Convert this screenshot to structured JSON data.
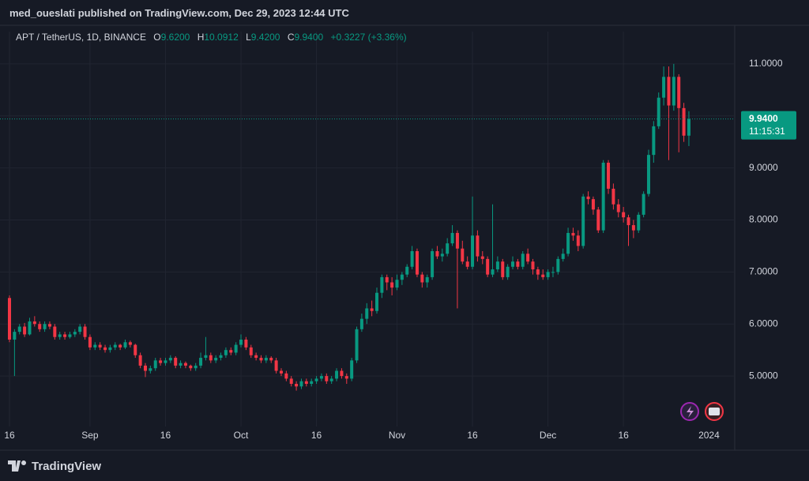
{
  "header": "med_oueslati published on TradingView.com, Dec 29, 2023 12:44 UTC",
  "footer": "TradingView",
  "chart_data": {
    "type": "candlestick",
    "legend": {
      "symbol": "APT / TetherUS, 1D, BINANCE",
      "open_key": "O",
      "open": "9.6200",
      "high_key": "H",
      "high": "10.0912",
      "low_key": "L",
      "low": "9.4200",
      "close_key": "C",
      "close": "9.9400",
      "change": "+0.3227 (+3.36%)"
    },
    "up_color": "#089981",
    "down_color": "#f23645",
    "ylim": [
      4.03,
      11.62
    ],
    "yticks": [
      {
        "value": 11,
        "label": "11.0000"
      },
      {
        "value": 10,
        "label": "10.0000"
      },
      {
        "value": 9,
        "label": "9.0000"
      },
      {
        "value": 8,
        "label": "8.0000"
      },
      {
        "value": 7,
        "label": "7.0000"
      },
      {
        "value": 6,
        "label": "6.0000"
      },
      {
        "value": 5,
        "label": "5.0000"
      }
    ],
    "grid": true,
    "last_price": {
      "value": 9.94,
      "label": "9.9400"
    },
    "countdown": "11:15:31",
    "future_label": "2024",
    "categories": [
      "16",
      null,
      null,
      null,
      null,
      null,
      null,
      null,
      null,
      null,
      null,
      null,
      null,
      null,
      null,
      null,
      "Sep",
      null,
      null,
      null,
      null,
      null,
      null,
      null,
      null,
      null,
      null,
      null,
      null,
      null,
      null,
      "16",
      null,
      null,
      null,
      null,
      null,
      null,
      null,
      null,
      null,
      null,
      null,
      null,
      null,
      null,
      "Oct",
      null,
      null,
      null,
      null,
      null,
      null,
      null,
      null,
      null,
      null,
      null,
      null,
      null,
      null,
      "16",
      null,
      null,
      null,
      null,
      null,
      null,
      null,
      null,
      null,
      null,
      null,
      null,
      null,
      null,
      null,
      "Nov",
      null,
      null,
      null,
      null,
      null,
      null,
      null,
      null,
      null,
      null,
      null,
      null,
      null,
      null,
      "16",
      null,
      null,
      null,
      null,
      null,
      null,
      null,
      null,
      null,
      null,
      null,
      null,
      null,
      null,
      "Dec",
      null,
      null,
      null,
      null,
      null,
      null,
      null,
      null,
      null,
      null,
      null,
      null,
      null,
      null,
      "16",
      null,
      null,
      null,
      null,
      null,
      null,
      null,
      null,
      null,
      null,
      null,
      null,
      null
    ],
    "ohlc": [
      [
        6.5,
        6.55,
        5.65,
        5.7
      ],
      [
        5.7,
        5.9,
        5.0,
        5.85
      ],
      [
        5.85,
        6.0,
        5.8,
        5.95
      ],
      [
        5.95,
        6.02,
        5.75,
        5.8
      ],
      [
        5.8,
        6.12,
        5.78,
        6.05
      ],
      [
        6.05,
        6.15,
        5.95,
        6.0
      ],
      [
        6.0,
        6.05,
        5.85,
        5.9
      ],
      [
        5.9,
        6.05,
        5.85,
        6.0
      ],
      [
        6.0,
        6.05,
        5.9,
        5.95
      ],
      [
        5.95,
        6.0,
        5.7,
        5.75
      ],
      [
        5.75,
        5.85,
        5.7,
        5.8
      ],
      [
        5.8,
        5.85,
        5.7,
        5.75
      ],
      [
        5.75,
        5.85,
        5.72,
        5.8
      ],
      [
        5.8,
        5.9,
        5.75,
        5.85
      ],
      [
        5.85,
        6.0,
        5.8,
        5.95
      ],
      [
        5.95,
        6.0,
        5.7,
        5.75
      ],
      [
        5.75,
        5.8,
        5.5,
        5.55
      ],
      [
        5.55,
        5.65,
        5.5,
        5.6
      ],
      [
        5.6,
        5.65,
        5.5,
        5.55
      ],
      [
        5.55,
        5.6,
        5.45,
        5.5
      ],
      [
        5.5,
        5.6,
        5.45,
        5.55
      ],
      [
        5.55,
        5.65,
        5.5,
        5.6
      ],
      [
        5.6,
        5.62,
        5.5,
        5.55
      ],
      [
        5.55,
        5.7,
        5.52,
        5.65
      ],
      [
        5.65,
        5.68,
        5.55,
        5.6
      ],
      [
        5.6,
        5.62,
        5.35,
        5.4
      ],
      [
        5.4,
        5.45,
        5.15,
        5.2
      ],
      [
        5.2,
        5.25,
        4.98,
        5.1
      ],
      [
        5.1,
        5.2,
        5.05,
        5.15
      ],
      [
        5.15,
        5.35,
        5.1,
        5.3
      ],
      [
        5.3,
        5.35,
        5.2,
        5.25
      ],
      [
        5.25,
        5.35,
        5.2,
        5.3
      ],
      [
        5.3,
        5.4,
        5.25,
        5.35
      ],
      [
        5.35,
        5.38,
        5.15,
        5.2
      ],
      [
        5.2,
        5.3,
        5.15,
        5.25
      ],
      [
        5.25,
        5.28,
        5.15,
        5.2
      ],
      [
        5.2,
        5.22,
        5.1,
        5.15
      ],
      [
        5.15,
        5.25,
        5.1,
        5.2
      ],
      [
        5.2,
        5.45,
        5.15,
        5.35
      ],
      [
        5.35,
        5.75,
        5.3,
        5.4
      ],
      [
        5.4,
        5.45,
        5.25,
        5.3
      ],
      [
        5.3,
        5.4,
        5.25,
        5.35
      ],
      [
        5.35,
        5.45,
        5.3,
        5.4
      ],
      [
        5.4,
        5.55,
        5.35,
        5.5
      ],
      [
        5.5,
        5.55,
        5.4,
        5.45
      ],
      [
        5.45,
        5.65,
        5.4,
        5.6
      ],
      [
        5.6,
        5.8,
        5.55,
        5.7
      ],
      [
        5.7,
        5.75,
        5.5,
        5.55
      ],
      [
        5.55,
        5.6,
        5.35,
        5.4
      ],
      [
        5.4,
        5.45,
        5.3,
        5.35
      ],
      [
        5.35,
        5.4,
        5.25,
        5.3
      ],
      [
        5.3,
        5.4,
        5.25,
        5.35
      ],
      [
        5.35,
        5.38,
        5.25,
        5.3
      ],
      [
        5.3,
        5.35,
        5.05,
        5.1
      ],
      [
        5.1,
        5.15,
        5.0,
        5.05
      ],
      [
        5.05,
        5.1,
        4.9,
        4.95
      ],
      [
        4.95,
        5.0,
        4.8,
        4.85
      ],
      [
        4.85,
        4.9,
        4.72,
        4.8
      ],
      [
        4.8,
        4.95,
        4.75,
        4.9
      ],
      [
        4.9,
        4.95,
        4.8,
        4.85
      ],
      [
        4.85,
        4.95,
        4.8,
        4.9
      ],
      [
        4.9,
        5.0,
        4.85,
        4.95
      ],
      [
        4.95,
        5.05,
        4.9,
        5.0
      ],
      [
        5.0,
        5.05,
        4.85,
        4.9
      ],
      [
        4.9,
        5.0,
        4.85,
        4.95
      ],
      [
        4.95,
        5.15,
        4.9,
        5.1
      ],
      [
        5.1,
        5.15,
        4.95,
        5.0
      ],
      [
        5.0,
        5.05,
        4.85,
        4.95
      ],
      [
        4.95,
        5.35,
        4.9,
        5.3
      ],
      [
        5.3,
        5.95,
        5.25,
        5.9
      ],
      [
        5.9,
        6.2,
        5.85,
        6.1
      ],
      [
        6.1,
        6.4,
        6.0,
        6.3
      ],
      [
        6.3,
        6.45,
        6.15,
        6.25
      ],
      [
        6.25,
        6.7,
        6.2,
        6.6
      ],
      [
        6.6,
        6.95,
        6.5,
        6.9
      ],
      [
        6.9,
        6.95,
        6.65,
        6.8
      ],
      [
        6.8,
        6.9,
        6.55,
        6.7
      ],
      [
        6.7,
        6.95,
        6.65,
        6.85
      ],
      [
        6.85,
        7.0,
        6.75,
        6.95
      ],
      [
        6.95,
        7.15,
        6.9,
        7.1
      ],
      [
        7.1,
        7.5,
        7.05,
        7.4
      ],
      [
        7.4,
        7.45,
        6.9,
        6.95
      ],
      [
        6.95,
        7.0,
        6.7,
        6.8
      ],
      [
        6.8,
        6.95,
        6.7,
        6.9
      ],
      [
        6.9,
        7.45,
        6.85,
        7.4
      ],
      [
        7.4,
        7.5,
        7.25,
        7.3
      ],
      [
        7.3,
        7.45,
        7.2,
        7.35
      ],
      [
        7.35,
        7.65,
        7.3,
        7.55
      ],
      [
        7.55,
        7.9,
        7.5,
        7.75
      ],
      [
        7.75,
        7.8,
        6.3,
        7.45
      ],
      [
        7.45,
        7.6,
        7.15,
        7.2
      ],
      [
        7.2,
        7.3,
        7.05,
        7.1
      ],
      [
        7.1,
        8.45,
        7.05,
        7.7
      ],
      [
        7.7,
        7.8,
        7.2,
        7.3
      ],
      [
        7.3,
        7.4,
        7.15,
        7.25
      ],
      [
        7.25,
        7.3,
        6.9,
        6.95
      ],
      [
        6.95,
        8.3,
        6.9,
        7.05
      ],
      [
        7.05,
        7.3,
        7.0,
        7.2
      ],
      [
        7.2,
        7.25,
        6.85,
        6.9
      ],
      [
        6.9,
        7.15,
        6.85,
        7.1
      ],
      [
        7.1,
        7.3,
        7.05,
        7.2
      ],
      [
        7.2,
        7.25,
        7.05,
        7.1
      ],
      [
        7.1,
        7.4,
        7.05,
        7.35
      ],
      [
        7.35,
        7.45,
        7.15,
        7.2
      ],
      [
        7.2,
        7.25,
        6.95,
        7.05
      ],
      [
        7.05,
        7.1,
        6.85,
        6.95
      ],
      [
        6.95,
        7.05,
        6.85,
        6.9
      ],
      [
        6.9,
        7.05,
        6.85,
        7.0
      ],
      [
        7.0,
        7.1,
        6.9,
        7.0
      ],
      [
        7.0,
        7.3,
        6.95,
        7.25
      ],
      [
        7.25,
        7.45,
        7.2,
        7.35
      ],
      [
        7.35,
        7.85,
        7.3,
        7.75
      ],
      [
        7.75,
        7.85,
        7.6,
        7.7
      ],
      [
        7.7,
        7.8,
        7.4,
        7.5
      ],
      [
        7.5,
        8.5,
        7.45,
        8.45
      ],
      [
        8.45,
        8.55,
        8.3,
        8.4
      ],
      [
        8.4,
        8.45,
        8.1,
        8.2
      ],
      [
        8.2,
        8.25,
        7.75,
        7.8
      ],
      [
        7.8,
        9.15,
        7.75,
        9.1
      ],
      [
        9.1,
        9.15,
        8.5,
        8.6
      ],
      [
        8.6,
        8.7,
        8.2,
        8.3
      ],
      [
        8.3,
        8.4,
        8.05,
        8.15
      ],
      [
        8.15,
        8.25,
        7.95,
        8.05
      ],
      [
        8.05,
        8.1,
        7.5,
        7.9
      ],
      [
        7.9,
        8.0,
        7.65,
        7.8
      ],
      [
        7.8,
        8.15,
        7.75,
        8.1
      ],
      [
        8.1,
        8.55,
        8.05,
        8.5
      ],
      [
        8.5,
        9.35,
        8.45,
        9.25
      ],
      [
        9.25,
        9.9,
        9.1,
        9.8
      ],
      [
        9.8,
        10.45,
        9.75,
        10.35
      ],
      [
        10.35,
        10.95,
        10.2,
        10.75
      ],
      [
        10.75,
        10.95,
        9.15,
        10.2
      ],
      [
        10.2,
        11.0,
        10.1,
        10.75
      ],
      [
        10.75,
        10.8,
        9.3,
        10.15
      ],
      [
        10.15,
        10.25,
        9.5,
        9.62
      ],
      [
        9.62,
        10.09,
        9.42,
        9.94
      ]
    ]
  }
}
